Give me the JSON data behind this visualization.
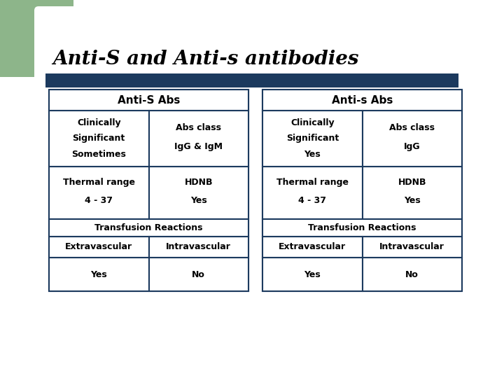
{
  "title": "Anti-S and Anti-s antibodies",
  "title_fontsize": 20,
  "title_style": "italic",
  "title_font": "serif",
  "title_weight": "bold",
  "background_color": "#ffffff",
  "green_rect_color": "#8db58a",
  "dark_blue_bar_color": "#1c3a5e",
  "table_border_color": "#1c3a5e",
  "header_text_color": "#000000",
  "cell_text_color": "#000000",
  "left_table": {
    "header": "Anti-S Abs",
    "col1_row1_line1": "Clinically",
    "col1_row1_line2": "Significant",
    "col1_row1_line3": "Sometimes",
    "col2_row1_line1": "Abs class",
    "col2_row1_line2": "IgG & IgM",
    "col1_row2_line1": "Thermal range",
    "col1_row2_line2": "4 - 37",
    "col2_row2_line1": "HDNB",
    "col2_row2_line2": "Yes",
    "row3": "Transfusion Reactions",
    "col1_row4": "Extravascular",
    "col2_row4": "Intravascular",
    "col1_row5": "Yes",
    "col2_row5": "No"
  },
  "right_table": {
    "header": "Anti-s Abs",
    "col1_row1_line1": "Clinically",
    "col1_row1_line2": "Significant",
    "col1_row1_line3": "Yes",
    "col2_row1_line1": "Abs class",
    "col2_row1_line2": "IgG",
    "col1_row2_line1": "Thermal range",
    "col1_row2_line2": "4 - 37",
    "col2_row2_line1": "HDNB",
    "col2_row2_line2": "Yes",
    "row3": "Transfusion Reactions",
    "col1_row4": "Extravascular",
    "col2_row4": "Intravascular",
    "col1_row5": "Yes",
    "col2_row5": "No"
  },
  "fig_width": 7.2,
  "fig_height": 5.4,
  "dpi": 100
}
